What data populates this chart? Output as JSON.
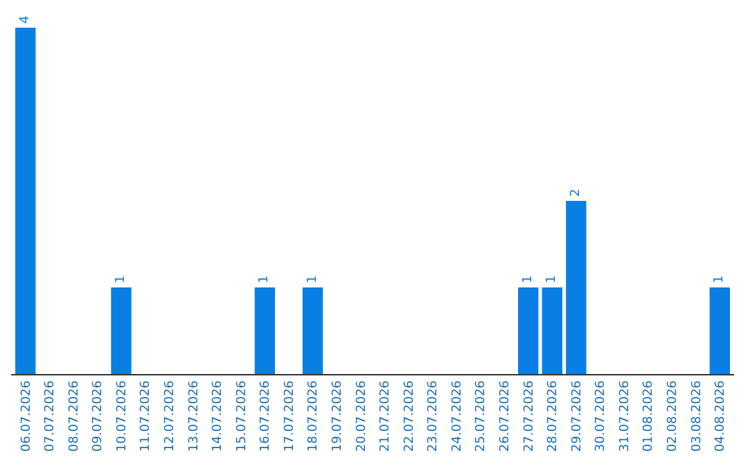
{
  "chart_data": {
    "type": "bar",
    "categories": [
      "06.07.2026",
      "07.07.2026",
      "08.07.2026",
      "09.07.2026",
      "10.07.2026",
      "11.07.2026",
      "12.07.2026",
      "13.07.2026",
      "14.07.2026",
      "15.07.2026",
      "16.07.2026",
      "17.07.2026",
      "18.07.2026",
      "19.07.2026",
      "20.07.2026",
      "21.07.2026",
      "22.07.2026",
      "23.07.2026",
      "24.07.2026",
      "25.07.2026",
      "26.07.2026",
      "27.07.2026",
      "28.07.2026",
      "29.07.2026",
      "30.07.2026",
      "31.07.2026",
      "01.08.2026",
      "02.08.2026",
      "03.08.2026",
      "04.08.2026"
    ],
    "values": [
      4,
      0,
      0,
      0,
      1,
      0,
      0,
      0,
      0,
      0,
      1,
      0,
      1,
      0,
      0,
      0,
      0,
      0,
      0,
      0,
      0,
      1,
      1,
      2,
      0,
      0,
      0,
      0,
      0,
      1
    ],
    "value_labels": [
      "4",
      null,
      null,
      null,
      "1",
      null,
      null,
      null,
      null,
      null,
      "1",
      null,
      "1",
      null,
      null,
      null,
      null,
      null,
      null,
      null,
      null,
      "1",
      "1",
      "2",
      null,
      null,
      null,
      null,
      null,
      "1"
    ],
    "color": "#0a7fe3",
    "tick_labels": "x"
  }
}
